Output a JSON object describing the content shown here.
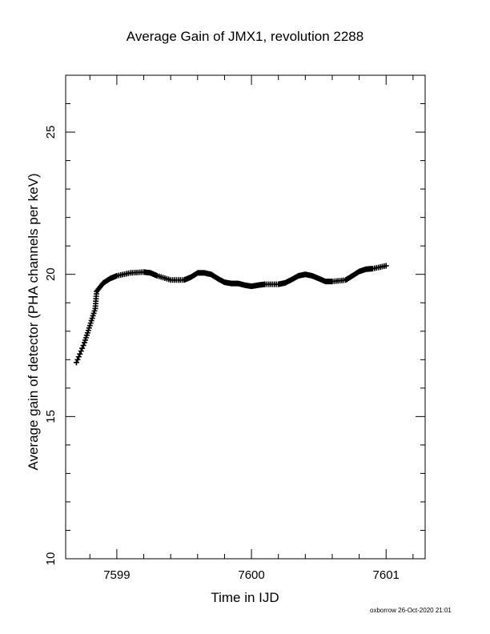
{
  "chart_data": {
    "type": "scatter",
    "title": "Average Gain of JMX1, revolution 2288",
    "xlabel": "Time in IJD",
    "ylabel": "Average gain of detector (PHA channels per keV)",
    "xlim": [
      7598.62,
      7601.29
    ],
    "ylim": [
      10,
      27
    ],
    "xticks": [
      7599,
      7600,
      7601
    ],
    "yticks": [
      10,
      15,
      20,
      25
    ],
    "marker": "plus",
    "color": "#000000",
    "series": [
      {
        "x": [
          7598.7,
          7598.76,
          7598.8,
          7598.84,
          7598.85,
          7598.9,
          7598.95,
          7599.0,
          7599.1,
          7599.2,
          7599.25,
          7599.3,
          7599.4,
          7599.5,
          7599.55,
          7599.6,
          7599.65,
          7599.7,
          7599.75,
          7599.8,
          7599.85,
          7599.9,
          7599.95,
          7600.0,
          7600.05,
          7600.1,
          7600.2,
          7600.25,
          7600.3,
          7600.35,
          7600.4,
          7600.45,
          7600.5,
          7600.55,
          7600.6,
          7600.7,
          7600.75,
          7600.8,
          7600.85,
          7600.9,
          7601.0
        ],
        "y": [
          16.9,
          17.6,
          18.2,
          18.8,
          19.4,
          19.7,
          19.85,
          19.95,
          20.05,
          20.08,
          20.05,
          19.95,
          19.8,
          19.8,
          19.9,
          20.05,
          20.05,
          20.0,
          19.85,
          19.72,
          19.68,
          19.68,
          19.62,
          19.58,
          19.62,
          19.65,
          19.65,
          19.7,
          19.82,
          19.95,
          20.0,
          19.95,
          19.85,
          19.75,
          19.75,
          19.8,
          19.95,
          20.1,
          20.18,
          20.2,
          20.3
        ]
      }
    ]
  },
  "footer": "oxborrow 26-Oct-2020 21:01"
}
